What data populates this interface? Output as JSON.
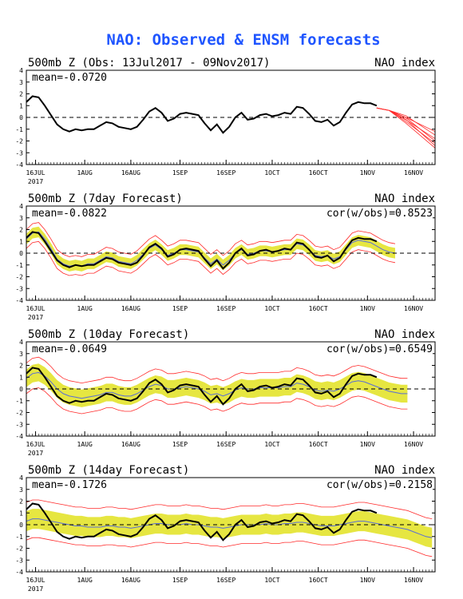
{
  "title": "NAO: Observed & ENSM forecasts",
  "colors": {
    "title": "#1f55ff",
    "obs": "#000000",
    "members": "#ff2a2a",
    "spread": "#e6e641",
    "mean": "#5a6ed6",
    "zero": "#000000"
  },
  "x_tick_labels": [
    "16JUL",
    "1AUG",
    "16AUG",
    "1SEP",
    "16SEP",
    "1OCT",
    "16OCT",
    "1NOV",
    "16NOV"
  ],
  "year_label": "2017",
  "chart_data": [
    {
      "type": "line",
      "subtitle": "500mb Z (Obs: 13Jul2017 - 09Nov2017)",
      "right_label": "NAO index",
      "stat_label": "mean=-0.0720",
      "cor_label": "",
      "ylim": [
        -4,
        4
      ],
      "yticks": [
        -4,
        -3,
        -2,
        -1,
        0,
        1,
        2,
        3,
        4
      ],
      "xlim_days": [
        13,
        146
      ],
      "observed": {
        "days": [
          13,
          15,
          17,
          19,
          21,
          23,
          25,
          27,
          29,
          31,
          33,
          35,
          37,
          39,
          41,
          43,
          45,
          47,
          49,
          51,
          53,
          55,
          57,
          59,
          61,
          63,
          65,
          67,
          69,
          71,
          73,
          75,
          77,
          79,
          81,
          83,
          85,
          87,
          89,
          91,
          93,
          95,
          97,
          99,
          101,
          103,
          105,
          107,
          109,
          111,
          113,
          115,
          117,
          119,
          121,
          123,
          125,
          127
        ],
        "values": [
          1.3,
          1.8,
          1.7,
          1.0,
          0.2,
          -0.6,
          -1.0,
          -1.2,
          -1.0,
          -1.1,
          -1.0,
          -1.0,
          -0.7,
          -0.4,
          -0.5,
          -0.8,
          -0.9,
          -1.0,
          -0.8,
          -0.2,
          0.5,
          0.8,
          0.4,
          -0.3,
          -0.1,
          0.3,
          0.4,
          0.3,
          0.2,
          -0.5,
          -1.1,
          -0.6,
          -1.3,
          -0.8,
          0.0,
          0.4,
          -0.2,
          -0.1,
          0.2,
          0.3,
          0.1,
          0.2,
          0.4,
          0.3,
          0.9,
          0.8,
          0.3,
          -0.3,
          -0.4,
          -0.2,
          -0.7,
          -0.4,
          0.4,
          1.1,
          1.3,
          1.2,
          1.2,
          1.0
        ]
      },
      "forecast_members": {
        "start_day": 127,
        "end_day": 146,
        "start_value": 0.8,
        "end_values": [
          -1.2,
          -1.5,
          -1.8,
          -2.0,
          -2.2,
          -2.4,
          -2.6
        ]
      }
    },
    {
      "type": "line",
      "subtitle": "500mb Z (7day Forecast)",
      "right_label": "NAO index",
      "stat_label": "mean=-0.0822",
      "cor_label": "cor(w/obs)=0.8523",
      "ylim": [
        -4,
        4
      ],
      "yticks": [
        -4,
        -3,
        -2,
        -1,
        0,
        1,
        2,
        3,
        4
      ],
      "xlim_days": [
        13,
        146
      ],
      "observed": {
        "days": [
          13,
          15,
          17,
          19,
          21,
          23,
          25,
          27,
          29,
          31,
          33,
          35,
          37,
          39,
          41,
          43,
          45,
          47,
          49,
          51,
          53,
          55,
          57,
          59,
          61,
          63,
          65,
          67,
          69,
          71,
          73,
          75,
          77,
          79,
          81,
          83,
          85,
          87,
          89,
          91,
          93,
          95,
          97,
          99,
          101,
          103,
          105,
          107,
          109,
          111,
          113,
          115,
          117,
          119,
          121,
          123,
          125,
          127
        ],
        "values": [
          1.3,
          1.8,
          1.7,
          1.0,
          0.2,
          -0.6,
          -1.0,
          -1.2,
          -1.0,
          -1.1,
          -1.0,
          -1.0,
          -0.7,
          -0.4,
          -0.5,
          -0.8,
          -0.9,
          -1.0,
          -0.8,
          -0.2,
          0.5,
          0.8,
          0.4,
          -0.3,
          -0.1,
          0.3,
          0.4,
          0.3,
          0.2,
          -0.5,
          -1.1,
          -0.6,
          -1.3,
          -0.8,
          0.0,
          0.4,
          -0.2,
          -0.1,
          0.2,
          0.3,
          0.1,
          0.2,
          0.4,
          0.3,
          0.9,
          0.8,
          0.3,
          -0.3,
          -0.4,
          -0.2,
          -0.7,
          -0.4,
          0.4,
          1.1,
          1.3,
          1.2,
          1.2,
          1.0
        ]
      },
      "forecast_band": {
        "days": [
          13,
          15,
          17,
          19,
          21,
          23,
          25,
          27,
          29,
          31,
          33,
          35,
          37,
          39,
          41,
          43,
          45,
          47,
          49,
          51,
          53,
          55,
          57,
          59,
          61,
          63,
          65,
          67,
          69,
          71,
          73,
          75,
          77,
          79,
          81,
          83,
          85,
          87,
          89,
          91,
          93,
          95,
          97,
          99,
          101,
          103,
          105,
          107,
          109,
          111,
          113,
          115,
          117,
          119,
          121,
          123,
          125,
          127,
          129,
          131,
          133
        ],
        "mean": [
          1.2,
          1.7,
          1.8,
          1.2,
          0.4,
          -0.5,
          -0.9,
          -1.1,
          -1.0,
          -1.1,
          -0.9,
          -0.9,
          -0.6,
          -0.3,
          -0.4,
          -0.7,
          -0.8,
          -0.9,
          -0.6,
          -0.1,
          0.4,
          0.7,
          0.3,
          -0.2,
          0.0,
          0.3,
          0.3,
          0.2,
          0.1,
          -0.4,
          -0.9,
          -0.5,
          -1.0,
          -0.6,
          0.0,
          0.3,
          -0.1,
          0.0,
          0.2,
          0.2,
          0.1,
          0.2,
          0.3,
          0.3,
          0.8,
          0.7,
          0.3,
          -0.2,
          -0.3,
          -0.2,
          -0.5,
          -0.3,
          0.3,
          0.9,
          1.1,
          1.0,
          0.9,
          0.6,
          0.3,
          0.1,
          0.0
        ],
        "half_width": 0.45,
        "member_extra": 0.35
      }
    },
    {
      "type": "line",
      "subtitle": "500mb Z (10day Forecast)",
      "right_label": "NAO index",
      "stat_label": "mean=-0.0649",
      "cor_label": "cor(w/obs)=0.6549",
      "ylim": [
        -4,
        4
      ],
      "yticks": [
        -4,
        -3,
        -2,
        -1,
        0,
        1,
        2,
        3,
        4
      ],
      "xlim_days": [
        13,
        146
      ],
      "observed": {
        "days": [
          13,
          15,
          17,
          19,
          21,
          23,
          25,
          27,
          29,
          31,
          33,
          35,
          37,
          39,
          41,
          43,
          45,
          47,
          49,
          51,
          53,
          55,
          57,
          59,
          61,
          63,
          65,
          67,
          69,
          71,
          73,
          75,
          77,
          79,
          81,
          83,
          85,
          87,
          89,
          91,
          93,
          95,
          97,
          99,
          101,
          103,
          105,
          107,
          109,
          111,
          113,
          115,
          117,
          119,
          121,
          123,
          125,
          127
        ],
        "values": [
          1.3,
          1.8,
          1.7,
          1.0,
          0.2,
          -0.6,
          -1.0,
          -1.2,
          -1.0,
          -1.1,
          -1.0,
          -1.0,
          -0.7,
          -0.4,
          -0.5,
          -0.8,
          -0.9,
          -1.0,
          -0.8,
          -0.2,
          0.5,
          0.8,
          0.4,
          -0.3,
          -0.1,
          0.3,
          0.4,
          0.3,
          0.2,
          -0.5,
          -1.1,
          -0.6,
          -1.3,
          -0.8,
          0.0,
          0.4,
          -0.2,
          -0.1,
          0.2,
          0.3,
          0.1,
          0.2,
          0.4,
          0.3,
          0.9,
          0.8,
          0.3,
          -0.3,
          -0.4,
          -0.2,
          -0.7,
          -0.4,
          0.4,
          1.1,
          1.3,
          1.2,
          1.2,
          1.0
        ]
      },
      "forecast_band": {
        "days": [
          13,
          15,
          17,
          19,
          21,
          23,
          25,
          27,
          29,
          31,
          33,
          35,
          37,
          39,
          41,
          43,
          45,
          47,
          49,
          51,
          53,
          55,
          57,
          59,
          61,
          63,
          65,
          67,
          69,
          71,
          73,
          75,
          77,
          79,
          81,
          83,
          85,
          87,
          89,
          91,
          93,
          95,
          97,
          99,
          101,
          103,
          105,
          107,
          109,
          111,
          113,
          115,
          117,
          119,
          121,
          123,
          125,
          127,
          129,
          131,
          133,
          135,
          137
        ],
        "mean": [
          0.9,
          1.3,
          1.4,
          1.1,
          0.6,
          0.0,
          -0.4,
          -0.6,
          -0.7,
          -0.8,
          -0.7,
          -0.6,
          -0.5,
          -0.3,
          -0.3,
          -0.5,
          -0.6,
          -0.6,
          -0.4,
          -0.1,
          0.2,
          0.4,
          0.3,
          0.0,
          0.0,
          0.1,
          0.2,
          0.1,
          0.0,
          -0.2,
          -0.5,
          -0.4,
          -0.6,
          -0.4,
          -0.1,
          0.1,
          0.0,
          0.0,
          0.1,
          0.1,
          0.1,
          0.1,
          0.2,
          0.2,
          0.5,
          0.4,
          0.2,
          -0.1,
          -0.2,
          -0.1,
          -0.2,
          0.0,
          0.3,
          0.6,
          0.7,
          0.6,
          0.4,
          0.2,
          0.0,
          -0.2,
          -0.3,
          -0.4,
          -0.4
        ],
        "half_width": 0.75,
        "member_extra": 0.55
      }
    },
    {
      "type": "line",
      "subtitle": "500mb Z (14day Forecast)",
      "right_label": "NAO index",
      "stat_label": "mean=-0.1726",
      "cor_label": "cor(w/obs)=0.2158",
      "ylim": [
        -4,
        4
      ],
      "yticks": [
        -4,
        -3,
        -2,
        -1,
        0,
        1,
        2,
        3,
        4
      ],
      "xlim_days": [
        13,
        146
      ],
      "observed": {
        "days": [
          13,
          15,
          17,
          19,
          21,
          23,
          25,
          27,
          29,
          31,
          33,
          35,
          37,
          39,
          41,
          43,
          45,
          47,
          49,
          51,
          53,
          55,
          57,
          59,
          61,
          63,
          65,
          67,
          69,
          71,
          73,
          75,
          77,
          79,
          81,
          83,
          85,
          87,
          89,
          91,
          93,
          95,
          97,
          99,
          101,
          103,
          105,
          107,
          109,
          111,
          113,
          115,
          117,
          119,
          121,
          123,
          125,
          127
        ],
        "values": [
          1.3,
          1.8,
          1.7,
          1.0,
          0.2,
          -0.6,
          -1.0,
          -1.2,
          -1.0,
          -1.1,
          -1.0,
          -1.0,
          -0.7,
          -0.4,
          -0.5,
          -0.8,
          -0.9,
          -1.0,
          -0.8,
          -0.2,
          0.5,
          0.8,
          0.4,
          -0.3,
          -0.1,
          0.3,
          0.4,
          0.3,
          0.2,
          -0.5,
          -1.1,
          -0.6,
          -1.3,
          -0.8,
          0.0,
          0.4,
          -0.2,
          -0.1,
          0.2,
          0.3,
          0.1,
          0.2,
          0.4,
          0.3,
          0.9,
          0.8,
          0.3,
          -0.3,
          -0.4,
          -0.2,
          -0.7,
          -0.4,
          0.4,
          1.1,
          1.3,
          1.2,
          1.2,
          1.0
        ]
      },
      "forecast_band": {
        "days": [
          13,
          15,
          17,
          19,
          21,
          23,
          25,
          27,
          29,
          31,
          33,
          35,
          37,
          39,
          41,
          43,
          45,
          47,
          49,
          51,
          53,
          55,
          57,
          59,
          61,
          63,
          65,
          67,
          69,
          71,
          73,
          75,
          77,
          79,
          81,
          83,
          85,
          87,
          89,
          91,
          93,
          95,
          97,
          99,
          101,
          103,
          105,
          107,
          109,
          111,
          113,
          115,
          117,
          119,
          121,
          123,
          125,
          127,
          129,
          131,
          133,
          135,
          137,
          139,
          141,
          143,
          145
        ],
        "mean": [
          0.3,
          0.5,
          0.5,
          0.4,
          0.3,
          0.2,
          0.1,
          0.0,
          -0.1,
          -0.1,
          -0.2,
          -0.2,
          -0.2,
          -0.1,
          -0.1,
          -0.2,
          -0.2,
          -0.3,
          -0.2,
          -0.1,
          0.0,
          0.1,
          0.1,
          0.0,
          0.0,
          0.0,
          0.1,
          0.0,
          0.0,
          -0.1,
          -0.2,
          -0.2,
          -0.3,
          -0.2,
          -0.1,
          0.0,
          0.0,
          0.0,
          0.0,
          0.1,
          0.0,
          0.0,
          0.1,
          0.1,
          0.2,
          0.2,
          0.1,
          0.0,
          -0.1,
          -0.1,
          -0.1,
          0.0,
          0.1,
          0.2,
          0.3,
          0.3,
          0.2,
          0.1,
          0.0,
          -0.1,
          -0.2,
          -0.3,
          -0.4,
          -0.6,
          -0.8,
          -1.0,
          -1.1
        ],
        "half_width": 0.85,
        "member_extra": 0.75
      }
    }
  ]
}
